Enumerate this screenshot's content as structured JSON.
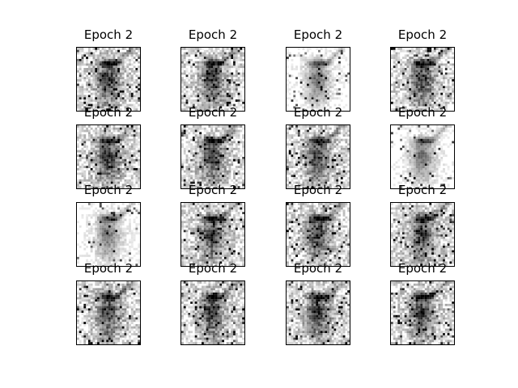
{
  "figure": {
    "rows": 4,
    "cols": 4,
    "background": "#ffffff"
  },
  "chart_data": {
    "type": "heatmap",
    "colormap": "gray_r",
    "grid": false,
    "panels": [
      {
        "title": "Epoch 2",
        "variant": "medium"
      },
      {
        "title": "Epoch 2",
        "variant": "medium"
      },
      {
        "title": "Epoch 2",
        "variant": "light"
      },
      {
        "title": "Epoch 2",
        "variant": "medium"
      },
      {
        "title": "Epoch 2",
        "variant": "medium"
      },
      {
        "title": "Epoch 2",
        "variant": "medium"
      },
      {
        "title": "Epoch 2",
        "variant": "medium"
      },
      {
        "title": "Epoch 2",
        "variant": "light"
      },
      {
        "title": "Epoch 2",
        "variant": "light"
      },
      {
        "title": "Epoch 2",
        "variant": "medium"
      },
      {
        "title": "Epoch 2",
        "variant": "medium"
      },
      {
        "title": "Epoch 2",
        "variant": "medium"
      },
      {
        "title": "Epoch 2",
        "variant": "medium"
      },
      {
        "title": "Epoch 2",
        "variant": "medium"
      },
      {
        "title": "Epoch 2",
        "variant": "medium"
      },
      {
        "title": "Epoch 2",
        "variant": "medium"
      }
    ]
  }
}
